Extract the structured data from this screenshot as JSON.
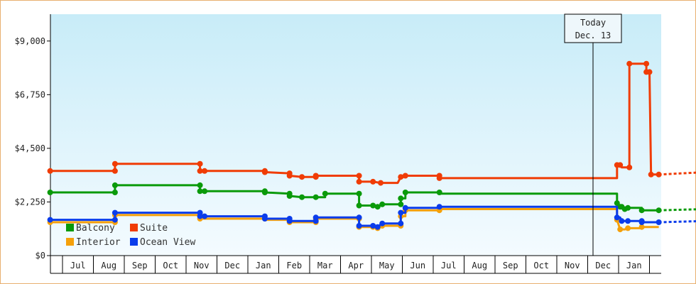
{
  "chart_data": {
    "type": "line",
    "title": "",
    "xlabel": "",
    "ylabel": "",
    "y_ticks": [
      "$0",
      "$2,250",
      "$4,500",
      "$6,750",
      "$9,000"
    ],
    "y_tick_values": [
      0,
      2250,
      4500,
      6750,
      9000
    ],
    "ylim": [
      0,
      10125
    ],
    "x_ticks": [
      "Jul",
      "Aug",
      "Sep",
      "Oct",
      "Nov",
      "Dec",
      "Jan",
      "Feb",
      "Mar",
      "Apr",
      "May",
      "Jun",
      "Jul",
      "Aug",
      "Sep",
      "Oct",
      "Nov",
      "Dec",
      "Jan"
    ],
    "x_unit": "month index (0 = start of Jul, first year)",
    "today_marker": {
      "line1": "Today",
      "line2": "Dec. 13",
      "x": 17.42
    },
    "legend_placement": "bottom-left, inside plot",
    "colors": {
      "Balcony": "#0a9a0a",
      "Suite": "#f03c05",
      "Interior": "#f5a00a",
      "Ocean View": "#0a3ceb",
      "plot_top": "#c8ecf8",
      "plot_bottom": "#f4fbff"
    },
    "series": [
      {
        "name": "Balcony",
        "steps": [
          [
            -0.4,
            2650
          ],
          [
            1.7,
            2650
          ],
          [
            1.7,
            2950
          ],
          [
            4.45,
            2950
          ],
          [
            4.45,
            2700
          ],
          [
            4.6,
            2700
          ],
          [
            6.55,
            2700
          ],
          [
            6.55,
            2650
          ],
          [
            7.35,
            2600
          ],
          [
            7.35,
            2500
          ],
          [
            7.75,
            2450
          ],
          [
            8.5,
            2450
          ],
          [
            8.5,
            2600
          ],
          [
            9.6,
            2600
          ],
          [
            9.6,
            2100
          ],
          [
            10.05,
            2100
          ],
          [
            10.2,
            2050
          ],
          [
            10.35,
            2150
          ],
          [
            10.95,
            2150
          ],
          [
            10.95,
            2400
          ],
          [
            11.1,
            2400
          ],
          [
            11.1,
            2650
          ],
          [
            12.2,
            2650
          ],
          [
            12.2,
            2600
          ],
          [
            17.95,
            2600
          ],
          [
            17.95,
            2200
          ],
          [
            18.05,
            2050
          ],
          [
            18.1,
            2050
          ],
          [
            18.2,
            1950
          ],
          [
            18.3,
            2000
          ],
          [
            18.75,
            2000
          ],
          [
            18.75,
            1900
          ],
          [
            19.3,
            1900
          ]
        ],
        "forecast": [
          [
            19.3,
            1900
          ],
          [
            20.8,
            1950
          ],
          [
            21.9,
            1950
          ]
        ]
      },
      {
        "name": "Suite",
        "steps": [
          [
            -0.4,
            3550
          ],
          [
            1.7,
            3550
          ],
          [
            1.7,
            3850
          ],
          [
            4.45,
            3850
          ],
          [
            4.45,
            3550
          ],
          [
            4.6,
            3550
          ],
          [
            6.55,
            3550
          ],
          [
            6.55,
            3500
          ],
          [
            7.35,
            3450
          ],
          [
            7.35,
            3350
          ],
          [
            7.75,
            3300
          ],
          [
            8.2,
            3300
          ],
          [
            8.2,
            3350
          ],
          [
            9.6,
            3350
          ],
          [
            9.6,
            3100
          ],
          [
            10.05,
            3100
          ],
          [
            10.3,
            3050
          ],
          [
            10.85,
            3050
          ],
          [
            10.95,
            3300
          ],
          [
            11.1,
            3300
          ],
          [
            11.1,
            3350
          ],
          [
            12.2,
            3350
          ],
          [
            12.2,
            3250
          ],
          [
            17.95,
            3250
          ],
          [
            17.95,
            3800
          ],
          [
            18.05,
            3800
          ],
          [
            18.1,
            3700
          ],
          [
            18.35,
            3700
          ],
          [
            18.35,
            8050
          ],
          [
            18.9,
            8050
          ],
          [
            18.9,
            7700
          ],
          [
            19.0,
            7700
          ],
          [
            19.05,
            3400
          ],
          [
            19.3,
            3400
          ]
        ],
        "forecast": [
          [
            19.3,
            3400
          ],
          [
            20.8,
            3500
          ],
          [
            21.9,
            3550
          ]
        ]
      },
      {
        "name": "Interior",
        "steps": [
          [
            -0.4,
            1400
          ],
          [
            1.7,
            1400
          ],
          [
            1.7,
            1700
          ],
          [
            4.45,
            1700
          ],
          [
            4.45,
            1550
          ],
          [
            4.6,
            1550
          ],
          [
            6.55,
            1550
          ],
          [
            6.55,
            1500
          ],
          [
            7.35,
            1500
          ],
          [
            7.35,
            1400
          ],
          [
            8.2,
            1400
          ],
          [
            8.2,
            1550
          ],
          [
            9.6,
            1550
          ],
          [
            9.6,
            1200
          ],
          [
            10.05,
            1200
          ],
          [
            10.2,
            1150
          ],
          [
            10.35,
            1250
          ],
          [
            10.95,
            1250
          ],
          [
            10.95,
            1650
          ],
          [
            11.1,
            1650
          ],
          [
            11.1,
            1900
          ],
          [
            12.2,
            1900
          ],
          [
            12.2,
            1950
          ],
          [
            17.95,
            1950
          ],
          [
            17.95,
            1500
          ],
          [
            18.05,
            1100
          ],
          [
            18.2,
            1100
          ],
          [
            18.3,
            1150
          ],
          [
            18.75,
            1150
          ],
          [
            18.75,
            1200
          ],
          [
            19.3,
            1200
          ]
        ],
        "forecast": []
      },
      {
        "name": "Ocean View",
        "steps": [
          [
            -0.4,
            1500
          ],
          [
            1.7,
            1500
          ],
          [
            1.7,
            1800
          ],
          [
            4.45,
            1800
          ],
          [
            4.45,
            1650
          ],
          [
            4.6,
            1650
          ],
          [
            6.55,
            1650
          ],
          [
            6.55,
            1550
          ],
          [
            7.35,
            1550
          ],
          [
            7.35,
            1450
          ],
          [
            8.2,
            1450
          ],
          [
            8.2,
            1600
          ],
          [
            9.6,
            1600
          ],
          [
            9.6,
            1250
          ],
          [
            10.05,
            1250
          ],
          [
            10.2,
            1200
          ],
          [
            10.35,
            1350
          ],
          [
            10.95,
            1350
          ],
          [
            10.95,
            1800
          ],
          [
            11.1,
            1800
          ],
          [
            11.1,
            2000
          ],
          [
            12.2,
            2000
          ],
          [
            12.2,
            2050
          ],
          [
            17.95,
            2050
          ],
          [
            17.95,
            1600
          ],
          [
            18.05,
            1600
          ],
          [
            18.1,
            1450
          ],
          [
            18.3,
            1450
          ],
          [
            18.75,
            1450
          ],
          [
            18.75,
            1400
          ],
          [
            19.3,
            1400
          ]
        ],
        "forecast": [
          [
            19.3,
            1400
          ],
          [
            20.8,
            1450
          ],
          [
            21.9,
            1450
          ]
        ]
      }
    ],
    "markers": {
      "Balcony": [
        [
          -0.4,
          2650
        ],
        [
          1.7,
          2650
        ],
        [
          1.7,
          2950
        ],
        [
          4.45,
          2950
        ],
        [
          4.45,
          2700
        ],
        [
          4.6,
          2700
        ],
        [
          6.55,
          2700
        ],
        [
          6.55,
          2650
        ],
        [
          7.35,
          2600
        ],
        [
          7.35,
          2500
        ],
        [
          7.75,
          2450
        ],
        [
          8.2,
          2450
        ],
        [
          8.5,
          2600
        ],
        [
          9.6,
          2600
        ],
        [
          9.6,
          2100
        ],
        [
          10.05,
          2100
        ],
        [
          10.2,
          2050
        ],
        [
          10.35,
          2150
        ],
        [
          10.95,
          2150
        ],
        [
          10.95,
          2400
        ],
        [
          11.1,
          2650
        ],
        [
          12.2,
          2650
        ],
        [
          17.95,
          2200
        ],
        [
          18.05,
          2050
        ],
        [
          18.1,
          2050
        ],
        [
          18.2,
          1950
        ],
        [
          18.3,
          2000
        ],
        [
          18.75,
          1900
        ],
        [
          19.3,
          1900
        ]
      ],
      "Suite": [
        [
          -0.4,
          3550
        ],
        [
          1.7,
          3550
        ],
        [
          1.7,
          3850
        ],
        [
          4.45,
          3850
        ],
        [
          4.45,
          3550
        ],
        [
          4.6,
          3550
        ],
        [
          6.55,
          3550
        ],
        [
          6.55,
          3500
        ],
        [
          7.35,
          3450
        ],
        [
          7.35,
          3350
        ],
        [
          7.75,
          3300
        ],
        [
          8.2,
          3300
        ],
        [
          8.2,
          3350
        ],
        [
          9.6,
          3350
        ],
        [
          9.6,
          3100
        ],
        [
          10.05,
          3100
        ],
        [
          10.3,
          3050
        ],
        [
          10.95,
          3300
        ],
        [
          11.1,
          3350
        ],
        [
          12.2,
          3350
        ],
        [
          12.2,
          3250
        ],
        [
          17.95,
          3800
        ],
        [
          18.05,
          3800
        ],
        [
          18.35,
          3700
        ],
        [
          18.35,
          8050
        ],
        [
          18.9,
          8050
        ],
        [
          18.9,
          7700
        ],
        [
          19.0,
          7700
        ],
        [
          19.05,
          3400
        ],
        [
          19.3,
          3400
        ]
      ],
      "Interior": [
        [
          -0.4,
          1400
        ],
        [
          1.7,
          1400
        ],
        [
          1.7,
          1700
        ],
        [
          4.45,
          1700
        ],
        [
          4.45,
          1550
        ],
        [
          6.55,
          1550
        ],
        [
          7.35,
          1500
        ],
        [
          7.35,
          1400
        ],
        [
          8.2,
          1400
        ],
        [
          8.2,
          1550
        ],
        [
          9.6,
          1550
        ],
        [
          9.6,
          1200
        ],
        [
          10.05,
          1200
        ],
        [
          10.2,
          1150
        ],
        [
          10.35,
          1250
        ],
        [
          10.95,
          1250
        ],
        [
          10.95,
          1650
        ],
        [
          11.1,
          1900
        ],
        [
          12.2,
          1900
        ],
        [
          17.95,
          1500
        ],
        [
          18.05,
          1100
        ],
        [
          18.3,
          1150
        ],
        [
          18.75,
          1200
        ]
      ],
      "Ocean View": [
        [
          -0.4,
          1500
        ],
        [
          1.7,
          1500
        ],
        [
          1.7,
          1800
        ],
        [
          4.45,
          1800
        ],
        [
          4.45,
          1650
        ],
        [
          4.6,
          1650
        ],
        [
          6.55,
          1650
        ],
        [
          6.55,
          1550
        ],
        [
          7.35,
          1550
        ],
        [
          7.35,
          1450
        ],
        [
          8.2,
          1450
        ],
        [
          8.2,
          1600
        ],
        [
          9.6,
          1600
        ],
        [
          9.6,
          1250
        ],
        [
          10.05,
          1250
        ],
        [
          10.2,
          1200
        ],
        [
          10.35,
          1350
        ],
        [
          10.95,
          1350
        ],
        [
          10.95,
          1800
        ],
        [
          11.1,
          2000
        ],
        [
          12.2,
          2050
        ],
        [
          17.95,
          1600
        ],
        [
          18.1,
          1450
        ],
        [
          18.3,
          1450
        ],
        [
          18.75,
          1450
        ],
        [
          18.75,
          1400
        ],
        [
          19.3,
          1400
        ]
      ]
    }
  }
}
